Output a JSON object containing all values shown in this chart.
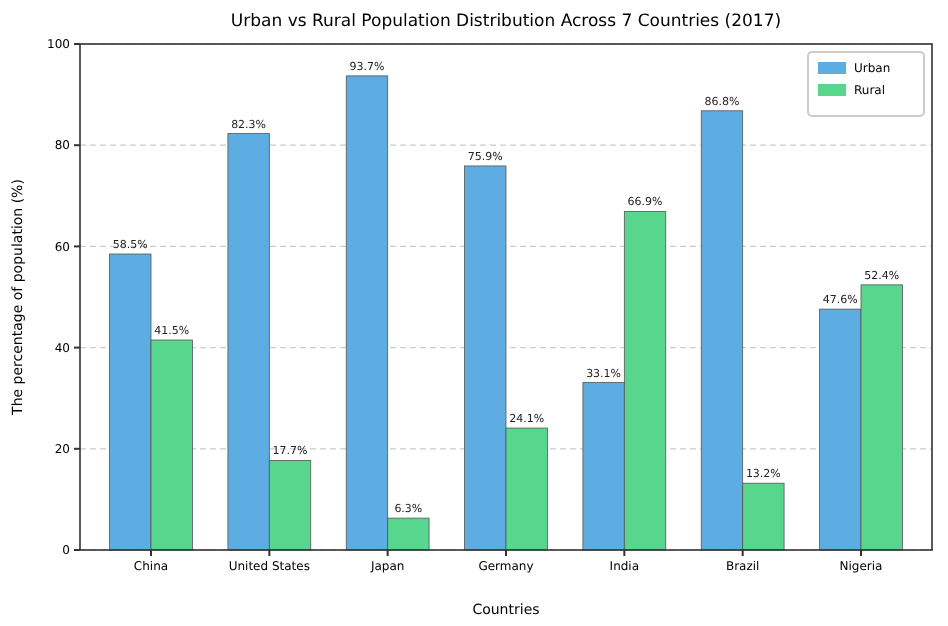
{
  "chart_data": {
    "type": "bar",
    "title": "Urban vs Rural Population Distribution Across 7 Countries (2017)",
    "xlabel": "Countries",
    "ylabel": "The percentage of population (%)",
    "categories": [
      "China",
      "United States",
      "Japan",
      "Germany",
      "India",
      "Brazil",
      "Nigeria"
    ],
    "series": [
      {
        "name": "Urban",
        "color": "#5dade2",
        "values": [
          58.5,
          82.3,
          93.7,
          75.9,
          33.1,
          86.8,
          47.6
        ],
        "value_labels": [
          "58.5%",
          "82.3%",
          "93.7%",
          "75.9%",
          "33.1%",
          "86.8%",
          "47.6%"
        ]
      },
      {
        "name": "Rural",
        "color": "#58d68d",
        "values": [
          41.5,
          17.7,
          6.3,
          24.1,
          66.9,
          13.2,
          52.4
        ],
        "value_labels": [
          "41.5%",
          "17.7%",
          "6.3%",
          "24.1%",
          "66.9%",
          "13.2%",
          "52.4%"
        ]
      }
    ],
    "ylim": [
      0,
      100
    ],
    "yticks": [
      0,
      20,
      40,
      60,
      80,
      100
    ],
    "grid": "y",
    "legend": "top right"
  }
}
